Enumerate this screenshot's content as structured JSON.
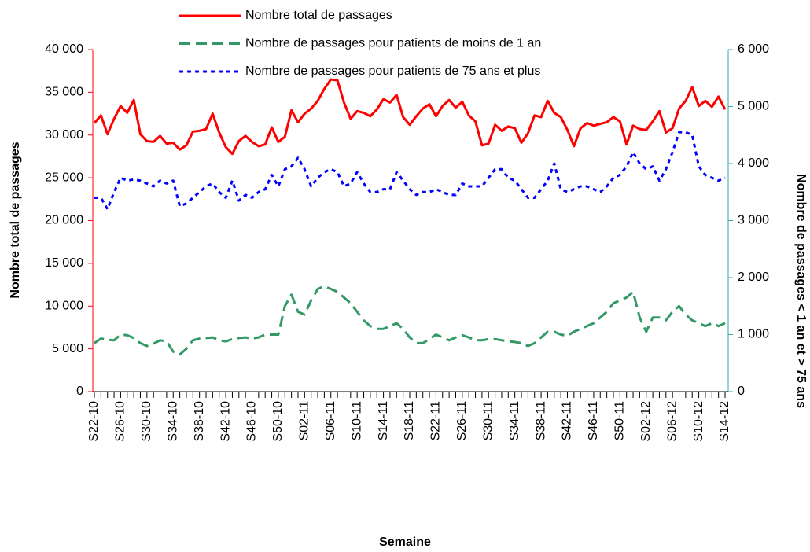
{
  "chart_data": {
    "type": "line",
    "xlabel": "Semaine",
    "ylabel": "Nombre total de passages",
    "y2label": "Nombre de passages < 1 an et > 75 ans",
    "categories": [
      "S22-10",
      null,
      null,
      null,
      "S26-10",
      null,
      null,
      null,
      "S30-10",
      null,
      null,
      null,
      "S34-10",
      null,
      null,
      null,
      "S38-10",
      null,
      null,
      null,
      "S42-10",
      null,
      null,
      null,
      "S46-10",
      null,
      null,
      null,
      "S50-10",
      null,
      null,
      null,
      "S02-11",
      null,
      null,
      null,
      "S06-11",
      null,
      null,
      null,
      "S10-11",
      null,
      null,
      null,
      "S14-11",
      null,
      null,
      null,
      "S18-11",
      null,
      null,
      null,
      "S22-11",
      null,
      null,
      null,
      "S26-11",
      null,
      null,
      null,
      "S30-11",
      null,
      null,
      null,
      "S34-11",
      null,
      null,
      null,
      "S38-11",
      null,
      null,
      null,
      "S42-11",
      null,
      null,
      null,
      "S46-11",
      null,
      null,
      null,
      "S50-11",
      null,
      null,
      null,
      "S02-12",
      null,
      null,
      null,
      "S06-12",
      null,
      null,
      null,
      "S10-12",
      null,
      null,
      null,
      "S14-12"
    ],
    "series": [
      {
        "name": "Nombre total de passages",
        "color": "#ff0000",
        "dash": "solid",
        "axis": "y",
        "values": [
          31400,
          32300,
          30100,
          31900,
          33400,
          32600,
          34100,
          30100,
          29300,
          29200,
          29900,
          29000,
          29100,
          28300,
          28800,
          30400,
          30500,
          30700,
          32500,
          30300,
          28600,
          27800,
          29300,
          29900,
          29200,
          28700,
          28900,
          30900,
          29200,
          29800,
          32900,
          31500,
          32500,
          33100,
          34000,
          35400,
          36500,
          36400,
          33800,
          31900,
          32800,
          32600,
          32200,
          33000,
          34200,
          33800,
          34700,
          32100,
          31200,
          32200,
          33100,
          33600,
          32200,
          33400,
          34100,
          33200,
          33900,
          32300,
          31600,
          28800,
          29000,
          31200,
          30500,
          31000,
          30800,
          29100,
          30200,
          32300,
          32100,
          34000,
          32600,
          32100,
          30600,
          28700,
          30800,
          31400,
          31100,
          31300,
          31500,
          32100,
          31600,
          28900,
          31100,
          30700,
          30600,
          31600,
          32800,
          30300,
          30800,
          33100,
          34000,
          35600,
          33400,
          34000,
          33300,
          34500,
          33000
        ]
      },
      {
        "name": "Nombre de passages pour patients de moins de 1 an",
        "color": "#339966",
        "dash": "dashed",
        "axis": "y2",
        "values": [
          850,
          930,
          910,
          900,
          1000,
          990,
          940,
          850,
          800,
          840,
          900,
          880,
          700,
          650,
          750,
          900,
          930,
          940,
          950,
          900,
          880,
          920,
          940,
          950,
          930,
          950,
          1000,
          1000,
          1000,
          1500,
          1700,
          1400,
          1350,
          1600,
          1800,
          1850,
          1800,
          1750,
          1650,
          1550,
          1400,
          1250,
          1150,
          1100,
          1100,
          1150,
          1200,
          1100,
          950,
          850,
          850,
          920,
          1000,
          950,
          900,
          950,
          990,
          950,
          900,
          900,
          920,
          920,
          900,
          880,
          870,
          850,
          800,
          850,
          950,
          1050,
          1050,
          1000,
          980,
          1050,
          1100,
          1150,
          1200,
          1300,
          1400,
          1550,
          1600,
          1650,
          1750,
          1300,
          1050,
          1300,
          1300,
          1250,
          1400,
          1500,
          1350,
          1250,
          1200,
          1150,
          1200,
          1150,
          1200
        ]
      },
      {
        "name": "Nombre de passages pour patients de 75 ans et plus",
        "color": "#0000ff",
        "dash": "dotted",
        "axis": "y2",
        "values": [
          3400,
          3400,
          3200,
          3500,
          3750,
          3700,
          3720,
          3700,
          3650,
          3600,
          3700,
          3650,
          3700,
          3250,
          3300,
          3400,
          3500,
          3600,
          3650,
          3500,
          3400,
          3700,
          3350,
          3450,
          3400,
          3500,
          3550,
          3800,
          3600,
          3900,
          3950,
          4100,
          3900,
          3600,
          3750,
          3850,
          3900,
          3850,
          3600,
          3650,
          3850,
          3650,
          3500,
          3500,
          3550,
          3550,
          3850,
          3700,
          3550,
          3450,
          3500,
          3500,
          3550,
          3500,
          3450,
          3450,
          3650,
          3600,
          3600,
          3600,
          3750,
          3900,
          3900,
          3750,
          3700,
          3550,
          3400,
          3400,
          3550,
          3700,
          4000,
          3550,
          3500,
          3550,
          3600,
          3600,
          3550,
          3500,
          3600,
          3750,
          3800,
          3950,
          4200,
          4000,
          3900,
          3950,
          3700,
          3900,
          4200,
          4550,
          4550,
          4500,
          3950,
          3800,
          3750,
          3700,
          3750
        ]
      }
    ],
    "ylim": [
      0,
      40000
    ],
    "yticks": [
      0,
      {
        "value": 5000,
        "label": "5 000"
      },
      {
        "value": 10000,
        "label": "10 000"
      },
      {
        "value": 15000,
        "label": "15 000"
      },
      {
        "value": 20000,
        "label": "20 000"
      },
      {
        "value": 25000,
        "label": "25 000"
      },
      {
        "value": 30000,
        "label": "30 000"
      },
      {
        "value": 35000,
        "label": "35 000"
      },
      {
        "value": 40000,
        "label": "40 000"
      }
    ],
    "y2lim": [
      0,
      6000
    ],
    "y2ticks": [
      0,
      {
        "value": 1000,
        "label": "1 000"
      },
      {
        "value": 2000,
        "label": "2 000"
      },
      {
        "value": 3000,
        "label": "3 000"
      },
      {
        "value": 4000,
        "label": "4 000"
      },
      {
        "value": 5000,
        "label": "5 000"
      },
      {
        "value": 6000,
        "label": "6 000"
      }
    ],
    "y_axis_color": "#ff0000",
    "y2_axis_color": "#33aaaa"
  }
}
